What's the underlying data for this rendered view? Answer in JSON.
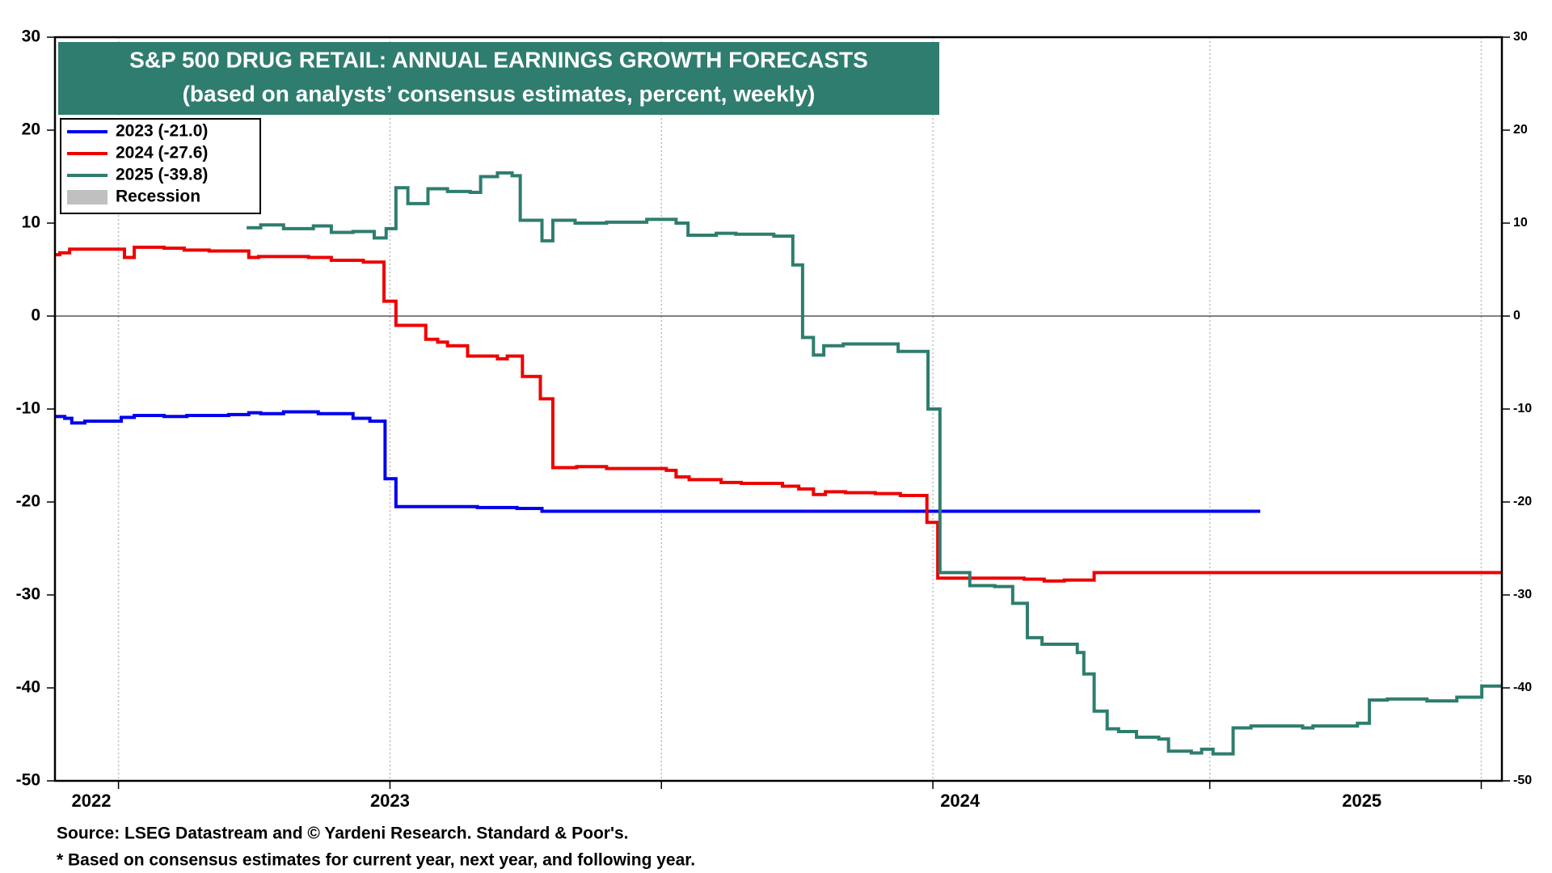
{
  "chart_data": {
    "type": "step-line",
    "title": "S&P 500 DRUG RETAIL: ANNUAL EARNINGS GROWTH FORECASTS",
    "subtitle": "(based on analysts’ consensus estimates, percent, weekly)",
    "source": "Source: LSEG Datastream and © Yardeni Research. Standard & Poor's.",
    "note": "* Based on consensus estimates for current year, next year, and following year.",
    "xlim": [
      2022.383,
      2025.048
    ],
    "xticks": [
      {
        "value": 2022.45,
        "label": "2022"
      },
      {
        "value": 2023.0,
        "label": "2023"
      },
      {
        "value": 2024.05,
        "label": "2024"
      },
      {
        "value": 2024.79,
        "label": "2025"
      }
    ],
    "xgrid": [
      2022.5,
      2023.0,
      2023.5,
      2024.0,
      2024.51,
      2025.01
    ],
    "ylim": [
      -50,
      30
    ],
    "yticks": [
      -50,
      -40,
      -30,
      -20,
      -10,
      0,
      10,
      20,
      30
    ],
    "y2lim": [
      -50,
      30
    ],
    "y2ticks": [
      -50,
      -40,
      -30,
      -20,
      -10,
      0,
      10,
      20,
      30
    ],
    "legend": "top-left",
    "series": [
      {
        "name": "2023 (-21.0)",
        "color": "#0000ee",
        "x": [
          2022.383,
          2022.401,
          2022.414,
          2022.438,
          2022.505,
          2022.529,
          2022.584,
          2022.626,
          2022.703,
          2022.74,
          2022.762,
          2022.804,
          2022.868,
          2022.932,
          2022.963,
          2022.991,
          2023.011,
          2023.161,
          2023.234,
          2023.28,
          2024.603
        ],
        "values": [
          -10.8,
          -11.0,
          -11.5,
          -11.3,
          -10.9,
          -10.7,
          -10.8,
          -10.7,
          -10.6,
          -10.4,
          -10.5,
          -10.3,
          -10.5,
          -11.0,
          -11.3,
          -17.5,
          -20.5,
          -20.6,
          -20.7,
          -21.0,
          -21.0
        ]
      },
      {
        "name": "2024 (-27.6)",
        "color": "#ee0000",
        "x": [
          2022.383,
          2022.392,
          2022.41,
          2022.511,
          2022.529,
          2022.584,
          2022.621,
          2022.667,
          2022.74,
          2022.758,
          2022.85,
          2022.892,
          2022.951,
          2022.989,
          2023.011,
          2023.066,
          2023.088,
          2023.106,
          2023.143,
          2023.198,
          2023.216,
          2023.244,
          2023.277,
          2023.3,
          2023.344,
          2023.399,
          2023.509,
          2023.527,
          2023.551,
          2023.61,
          2023.647,
          2023.723,
          2023.753,
          2023.78,
          2023.802,
          2023.839,
          2023.894,
          2023.94,
          2023.989,
          2024.009,
          2024.168,
          2024.205,
          2024.242,
          2024.297,
          2025.048
        ],
        "values": [
          6.6,
          6.8,
          7.2,
          6.3,
          7.4,
          7.3,
          7.1,
          7.0,
          6.3,
          6.4,
          6.3,
          6.0,
          5.8,
          1.6,
          -1.0,
          -2.5,
          -2.8,
          -3.2,
          -4.3,
          -4.6,
          -4.3,
          -6.5,
          -8.9,
          -16.3,
          -16.2,
          -16.4,
          -16.6,
          -17.3,
          -17.6,
          -17.9,
          -18.0,
          -18.3,
          -18.6,
          -19.2,
          -18.9,
          -19.0,
          -19.1,
          -19.3,
          -22.2,
          -28.2,
          -28.3,
          -28.5,
          -28.4,
          -27.6,
          -27.6
        ]
      },
      {
        "name": "2025 (-39.8)",
        "color": "#2e7d6e",
        "x": [
          2022.736,
          2022.762,
          2022.804,
          2022.859,
          2022.892,
          2022.932,
          2022.971,
          2022.993,
          2023.011,
          2023.033,
          2023.07,
          2023.106,
          2023.148,
          2023.167,
          2023.198,
          2023.225,
          2023.24,
          2023.28,
          2023.3,
          2023.341,
          2023.399,
          2023.473,
          2023.527,
          2023.549,
          2023.601,
          2023.637,
          2023.707,
          2023.742,
          2023.76,
          2023.78,
          2023.799,
          2023.835,
          2023.936,
          2023.991,
          2024.013,
          2024.068,
          2024.114,
          2024.147,
          2024.174,
          2024.201,
          2024.266,
          2024.278,
          2024.297,
          2024.321,
          2024.342,
          2024.375,
          2024.416,
          2024.434,
          2024.476,
          2024.495,
          2024.516,
          2024.553,
          2024.586,
          2024.681,
          2024.7,
          2024.782,
          2024.804,
          2024.837,
          2024.91,
          2024.965,
          2025.011,
          2025.048
        ],
        "values": [
          9.5,
          9.8,
          9.4,
          9.7,
          9.0,
          9.1,
          8.4,
          9.4,
          13.8,
          12.1,
          13.7,
          13.4,
          13.3,
          15.0,
          15.4,
          15.1,
          10.3,
          8.1,
          10.3,
          10.0,
          10.1,
          10.4,
          10.0,
          8.7,
          8.9,
          8.8,
          8.6,
          5.5,
          -2.3,
          -4.2,
          -3.2,
          -3.0,
          -3.8,
          -10.0,
          -27.6,
          -29.0,
          -29.1,
          -30.9,
          -34.6,
          -35.3,
          -36.2,
          -38.5,
          -42.5,
          -44.4,
          -44.7,
          -45.3,
          -45.5,
          -46.8,
          -47.0,
          -46.6,
          -47.1,
          -44.3,
          -44.1,
          -44.3,
          -44.1,
          -43.8,
          -41.3,
          -41.2,
          -41.4,
          -41.0,
          -39.8,
          -39.8
        ]
      },
      {
        "name": "Recession",
        "color": "#c0c0c0",
        "x": [],
        "values": []
      }
    ]
  }
}
